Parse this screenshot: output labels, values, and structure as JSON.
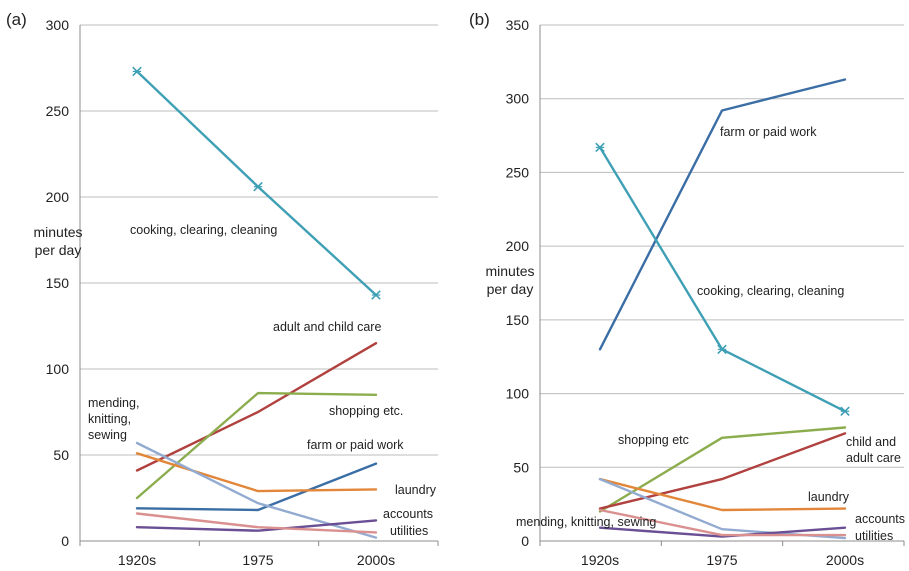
{
  "chart_data": [
    {
      "type": "line",
      "panel_label": "(a)",
      "ylabel": [
        "minutes",
        "per day"
      ],
      "categories": [
        "1920s",
        "1975",
        "2000s"
      ],
      "ylim": [
        0,
        300
      ],
      "yticks": [
        0,
        50,
        100,
        150,
        200,
        250,
        300
      ],
      "grid": true,
      "series": [
        {
          "key": "cooking",
          "values": [
            273,
            206,
            143
          ],
          "color": "#3fa0b5",
          "marker": "x"
        },
        {
          "key": "care",
          "values": [
            41,
            75,
            115
          ],
          "color": "#b0413e"
        },
        {
          "key": "shopping",
          "values": [
            25,
            86,
            85
          ],
          "color": "#8cad4e"
        },
        {
          "key": "farm",
          "values": [
            19,
            18,
            45
          ],
          "color": "#3b6ea5"
        },
        {
          "key": "laundry",
          "values": [
            51,
            29,
            30
          ],
          "color": "#e2873a"
        },
        {
          "key": "mending",
          "values": [
            57,
            22,
            2
          ],
          "color": "#93abd1"
        },
        {
          "key": "accounts",
          "values": [
            8,
            6,
            12
          ],
          "color": "#6a4f94"
        },
        {
          "key": "utilities",
          "values": [
            16,
            8,
            5
          ],
          "color": "#d9908f"
        }
      ],
      "annotations": [
        {
          "lines": [
            "cooking, clearing, cleaning"
          ]
        },
        {
          "lines": [
            "adult and child care"
          ]
        },
        {
          "lines": [
            "mending,",
            "knitting,",
            "sewing"
          ]
        },
        {
          "lines": [
            "shopping etc."
          ]
        },
        {
          "lines": [
            "farm or paid work"
          ]
        },
        {
          "lines": [
            "laundry"
          ]
        },
        {
          "lines": [
            "accounts"
          ]
        },
        {
          "lines": [
            "utilities"
          ]
        }
      ]
    },
    {
      "type": "line",
      "panel_label": "(b)",
      "ylabel": [
        "minutes",
        "per day"
      ],
      "categories": [
        "1920s",
        "1975",
        "2000s"
      ],
      "ylim": [
        0,
        350
      ],
      "yticks": [
        0,
        50,
        100,
        150,
        200,
        250,
        300,
        350
      ],
      "grid": true,
      "series": [
        {
          "key": "farm",
          "values": [
            130,
            292,
            313
          ],
          "color": "#3b6ea5"
        },
        {
          "key": "cooking",
          "values": [
            267,
            130,
            88
          ],
          "color": "#3fa0b5",
          "marker": "x"
        },
        {
          "key": "shopping",
          "values": [
            20,
            70,
            77
          ],
          "color": "#8cad4e"
        },
        {
          "key": "care",
          "values": [
            22,
            42,
            73
          ],
          "color": "#b0413e"
        },
        {
          "key": "laundry",
          "values": [
            42,
            21,
            22
          ],
          "color": "#e2873a"
        },
        {
          "key": "mending",
          "values": [
            42,
            8,
            2
          ],
          "color": "#93abd1"
        },
        {
          "key": "accounts",
          "values": [
            9,
            3,
            9
          ],
          "color": "#6a4f94"
        },
        {
          "key": "utilities",
          "values": [
            21,
            4,
            4
          ],
          "color": "#d9908f"
        }
      ],
      "annotations": [
        {
          "lines": [
            "farm or paid work"
          ]
        },
        {
          "lines": [
            "cooking, clearing, cleaning"
          ]
        },
        {
          "lines": [
            "shopping etc"
          ]
        },
        {
          "lines": [
            "child and",
            "adult care"
          ]
        },
        {
          "lines": [
            "laundry"
          ]
        },
        {
          "lines": [
            "mending, knitting, sewing"
          ]
        },
        {
          "lines": [
            "accounts"
          ]
        },
        {
          "lines": [
            "utilities"
          ]
        }
      ]
    }
  ]
}
